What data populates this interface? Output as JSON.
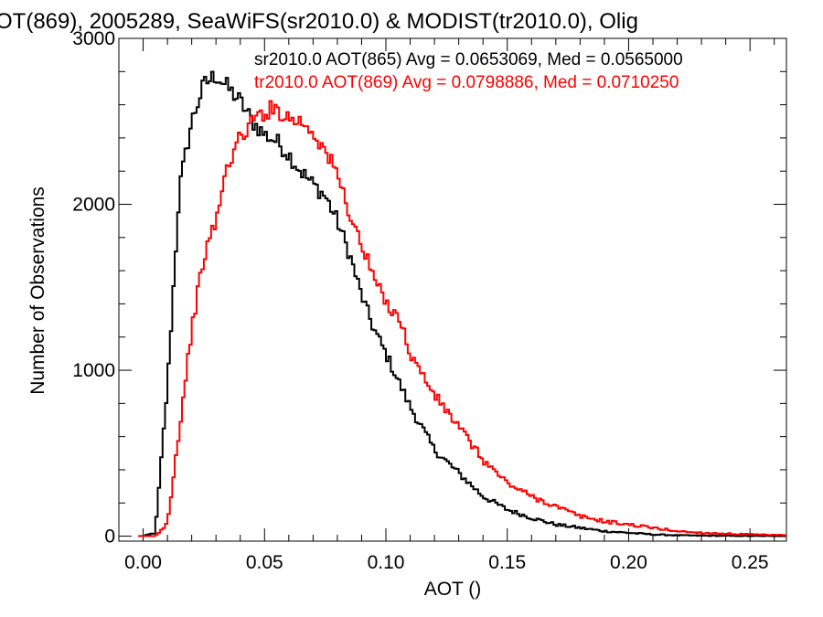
{
  "chart_data": {
    "type": "histogram-step",
    "title": "OT(869), 2005289, SeaWiFS(sr2010.0) & MODIST(tr2010.0), Olig",
    "xlabel": "AOT ()",
    "ylabel": "Number of Observations",
    "xlim": [
      -0.01,
      0.265
    ],
    "ylim": [
      -30,
      3000
    ],
    "x_ticks": [
      0.0,
      0.05,
      0.1,
      0.15,
      0.2,
      0.25
    ],
    "x_tick_labels": [
      "0.00",
      "0.05",
      "0.10",
      "0.15",
      "0.20",
      "0.25"
    ],
    "y_ticks": [
      0,
      1000,
      2000,
      3000
    ],
    "y_tick_labels": [
      "0",
      "1000",
      "2000",
      "3000"
    ],
    "grid": false,
    "legend_placement": "top-right",
    "series": [
      {
        "name": "sr2010.0 AOT(865) Avg = 0.0653069, Med = 0.0565000",
        "color": "#000000",
        "x": [
          0.0,
          0.005,
          0.01,
          0.015,
          0.02,
          0.025,
          0.03,
          0.035,
          0.04,
          0.045,
          0.05,
          0.055,
          0.06,
          0.065,
          0.07,
          0.075,
          0.08,
          0.085,
          0.09,
          0.095,
          0.1,
          0.11,
          0.12,
          0.13,
          0.14,
          0.15,
          0.16,
          0.17,
          0.18,
          0.19,
          0.2,
          0.21,
          0.22,
          0.23,
          0.24,
          0.25,
          0.265
        ],
        "y": [
          0,
          20,
          900,
          2100,
          2500,
          2720,
          2780,
          2700,
          2620,
          2500,
          2420,
          2380,
          2300,
          2200,
          2120,
          2050,
          1900,
          1700,
          1450,
          1250,
          1100,
          780,
          520,
          380,
          240,
          160,
          110,
          70,
          50,
          30,
          20,
          10,
          5,
          3,
          2,
          1,
          0
        ]
      },
      {
        "name": "tr2010.0 AOT(869) Avg = 0.0798886, Med = 0.0710250",
        "color": "#ff0000",
        "x": [
          0.0,
          0.005,
          0.01,
          0.015,
          0.02,
          0.025,
          0.03,
          0.035,
          0.04,
          0.045,
          0.05,
          0.055,
          0.06,
          0.065,
          0.07,
          0.075,
          0.08,
          0.085,
          0.09,
          0.095,
          0.1,
          0.105,
          0.11,
          0.12,
          0.13,
          0.14,
          0.15,
          0.16,
          0.17,
          0.18,
          0.19,
          0.2,
          0.21,
          0.22,
          0.23,
          0.24,
          0.25,
          0.265
        ],
        "y": [
          0,
          0,
          80,
          650,
          1250,
          1680,
          1900,
          2250,
          2400,
          2500,
          2560,
          2580,
          2520,
          2500,
          2440,
          2320,
          2180,
          1950,
          1750,
          1560,
          1400,
          1340,
          1100,
          850,
          660,
          460,
          320,
          240,
          180,
          120,
          90,
          70,
          50,
          30,
          20,
          15,
          10,
          5
        ]
      }
    ]
  }
}
